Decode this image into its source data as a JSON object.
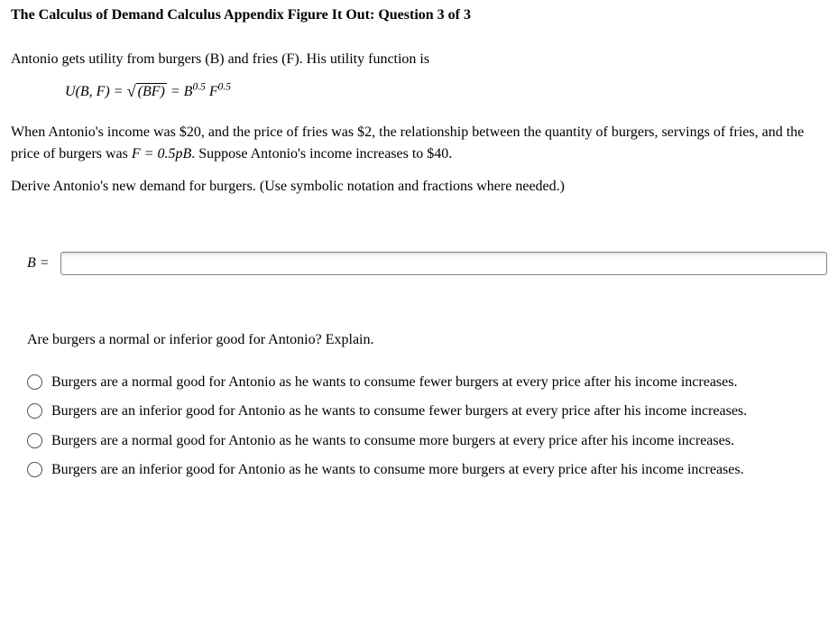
{
  "title": "The Calculus of Demand Calculus Appendix Figure It Out: Question 3 of 3",
  "intro": "Antonio gets utility from burgers (B) and fries (F). His utility function is",
  "formula": {
    "lhs": "U(B, F)",
    "rhs_sqrt_body": "(BF)",
    "rhs_b_exp": "0.5",
    "rhs_f_exp": "0.5"
  },
  "para2_a": "When Antonio's income was $20, and the price of fries was $2, the relationship between the quantity of burgers, servings of fries, and the price of burgers was ",
  "para2_formula": "F = 0.5pB",
  "para2_b": ". Suppose Antonio's income increases to $40.",
  "para3": "Derive Antonio's new demand for burgers. (Use symbolic notation and fractions where needed.)",
  "answer_label": "B =",
  "answer_value": "",
  "question2": "Are burgers a normal or inferior good for Antonio? Explain.",
  "options": [
    "Burgers are a normal good for Antonio as he wants to consume fewer burgers at every price after his income increases.",
    "Burgers are an inferior good for Antonio as he wants to consume fewer burgers at every price after his income increases.",
    "Burgers are a normal good for Antonio as he wants to consume more burgers at every price after his income increases.",
    "Burgers are an inferior good for Antonio as he wants to consume more burgers at every price after his income increases."
  ]
}
